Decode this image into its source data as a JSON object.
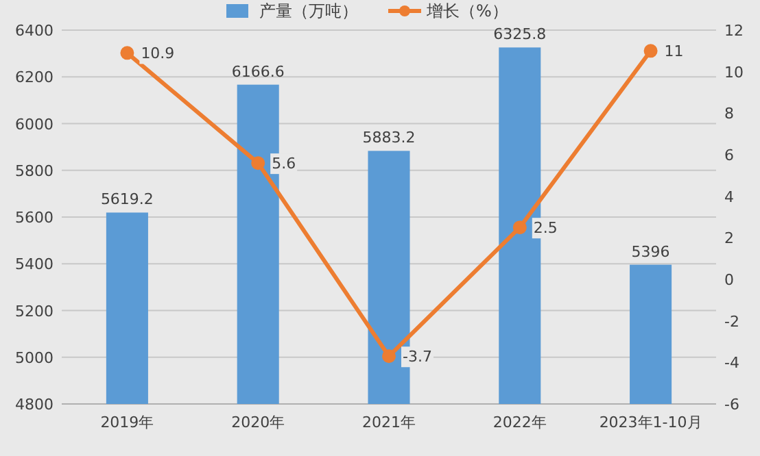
{
  "chart_data": {
    "type": "bar",
    "categories": [
      "2019年",
      "2020年",
      "2021年",
      "2022年",
      "2023年1-10月"
    ],
    "series": [
      {
        "name": "产量（万吨）",
        "color": "#5b9bd5",
        "values": [
          5619.2,
          6166.6,
          5883.2,
          6325.8,
          5396
        ]
      },
      {
        "name": "增长（%）",
        "type": "line",
        "axis": "y2",
        "color": "#ed7d31",
        "values": [
          10.9,
          5.6,
          -3.7,
          2.5,
          11
        ]
      }
    ],
    "ylim": [
      4800,
      6400
    ],
    "yticks": [
      4800,
      5000,
      5200,
      5400,
      5600,
      5800,
      6000,
      6200,
      6400
    ],
    "y2lim": [
      -6,
      12
    ],
    "y2ticks": [
      -6,
      -4,
      -2,
      0,
      2,
      4,
      6,
      8,
      10,
      12
    ],
    "grid": "y",
    "legend": "top",
    "marker": "circle",
    "data_labels": true
  }
}
